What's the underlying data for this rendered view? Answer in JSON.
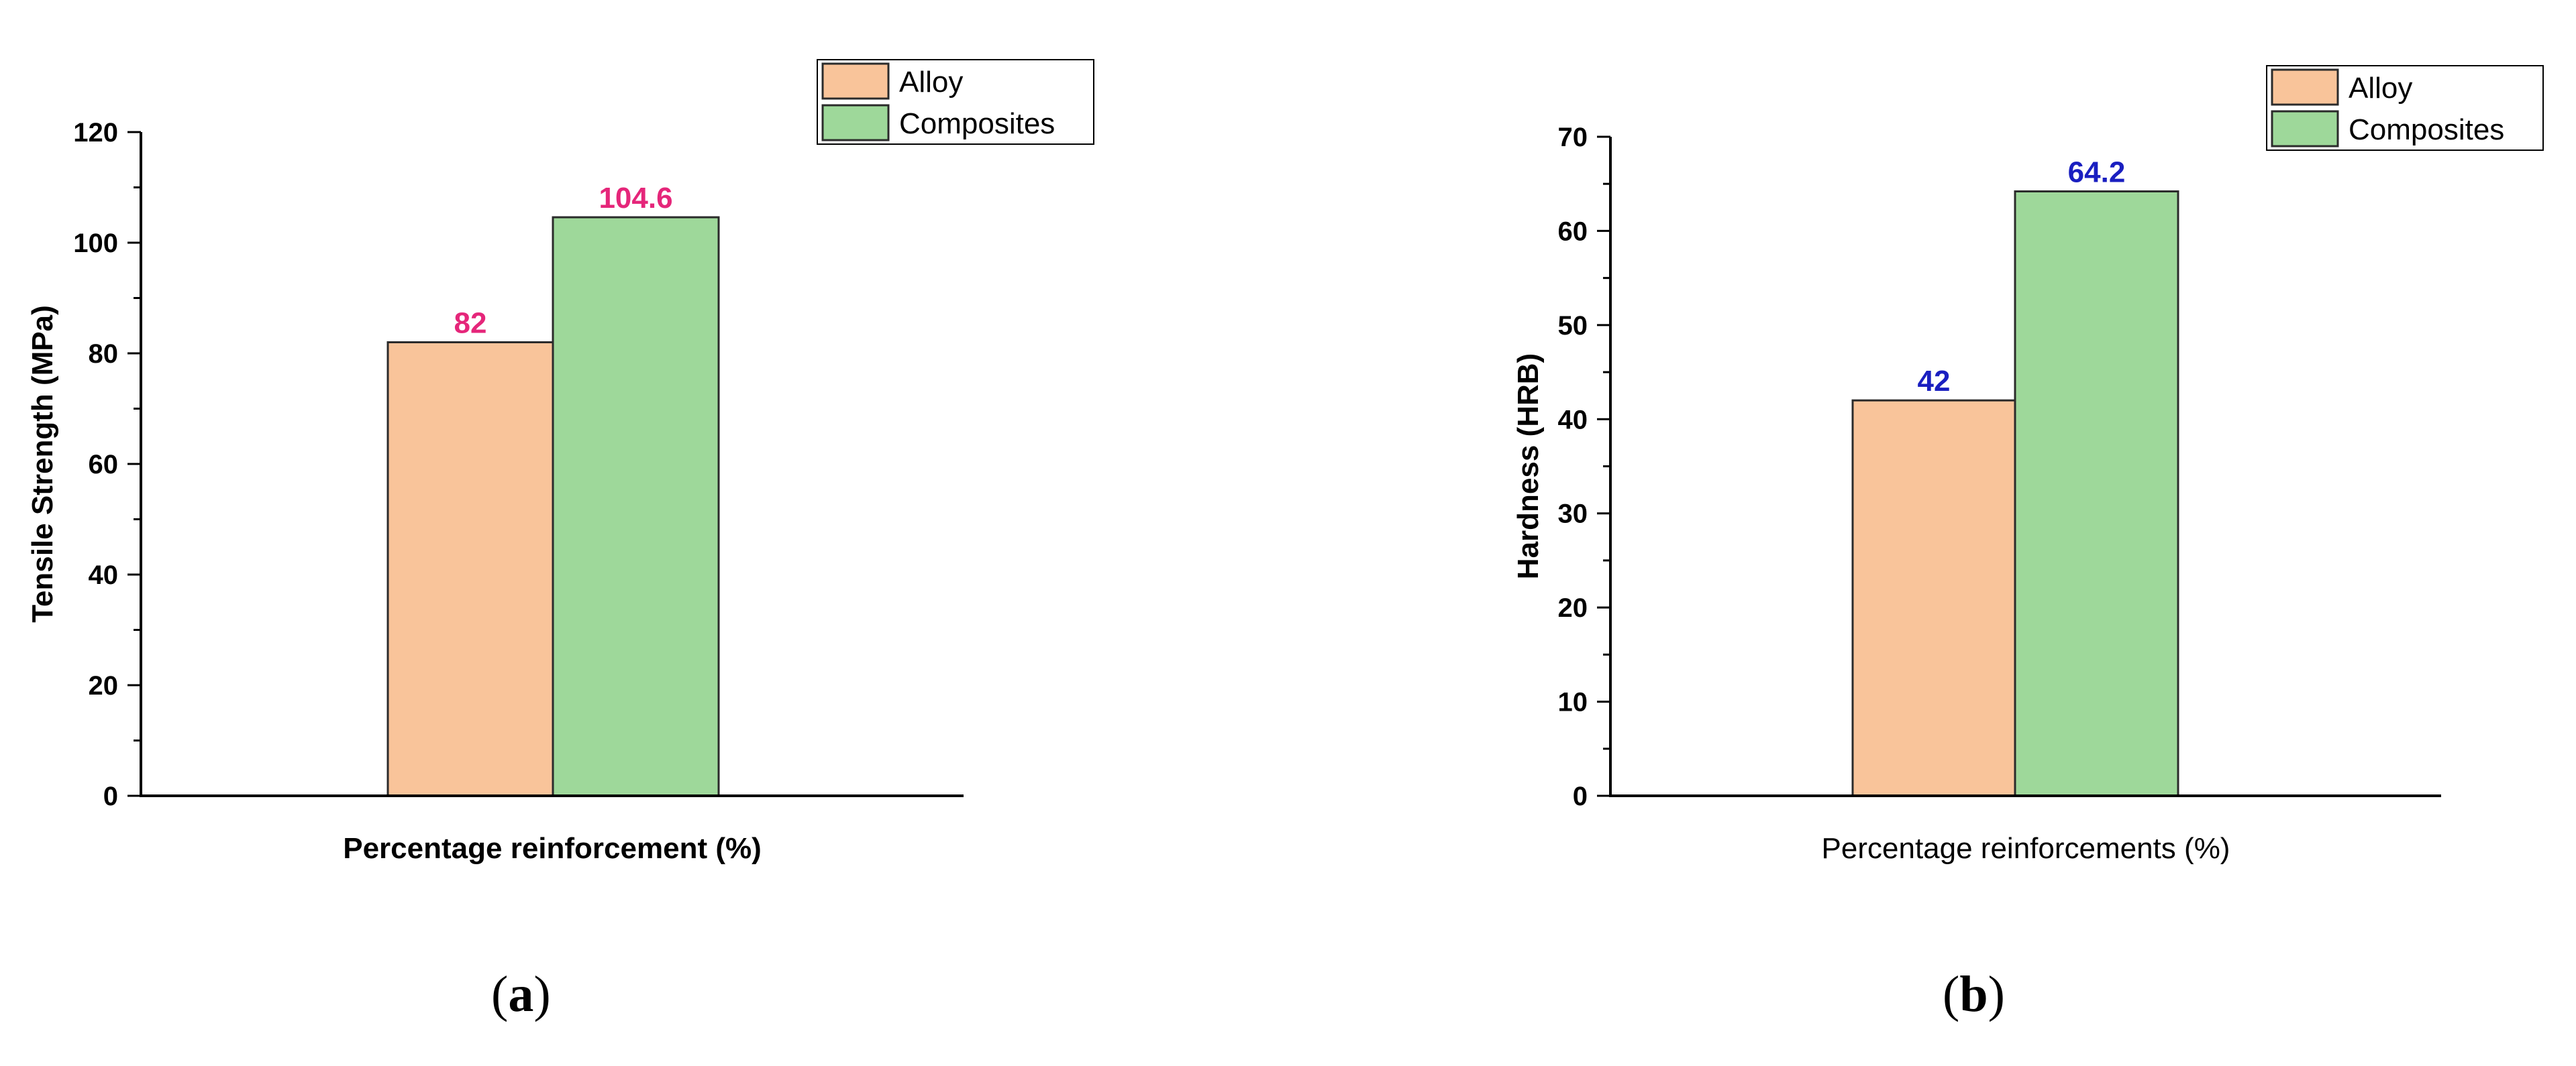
{
  "chart_data": [
    {
      "type": "bar",
      "panel_label": "a",
      "xlabel": "Percentage reinforcement (%)",
      "ylabel": "Tensile Strength (MPa)",
      "ylim": [
        0,
        120
      ],
      "yticks": [
        0,
        20,
        40,
        60,
        80,
        100,
        120
      ],
      "y_minor_step": 10,
      "grid": false,
      "legend_position": "top-right",
      "label_color": "#e5267a",
      "series": [
        {
          "name": "Alloy",
          "value": 82,
          "label": "82",
          "color": "#f9c49a"
        },
        {
          "name": "Composites",
          "value": 104.6,
          "label": "104.6",
          "color": "#9ed89a"
        }
      ]
    },
    {
      "type": "bar",
      "panel_label": "b",
      "xlabel": "Percentage reinforcements (%)",
      "ylabel": "Hardness (HRB)",
      "ylim": [
        0,
        70
      ],
      "yticks": [
        0,
        10,
        20,
        30,
        40,
        50,
        60,
        70
      ],
      "y_minor_step": 5,
      "grid": false,
      "legend_position": "top-right",
      "label_color": "#1a1fc0",
      "series": [
        {
          "name": "Alloy",
          "value": 42,
          "label": "42",
          "color": "#f9c49a"
        },
        {
          "name": "Composites",
          "value": 64.2,
          "label": "64.2",
          "color": "#9ed89a"
        }
      ]
    }
  ]
}
